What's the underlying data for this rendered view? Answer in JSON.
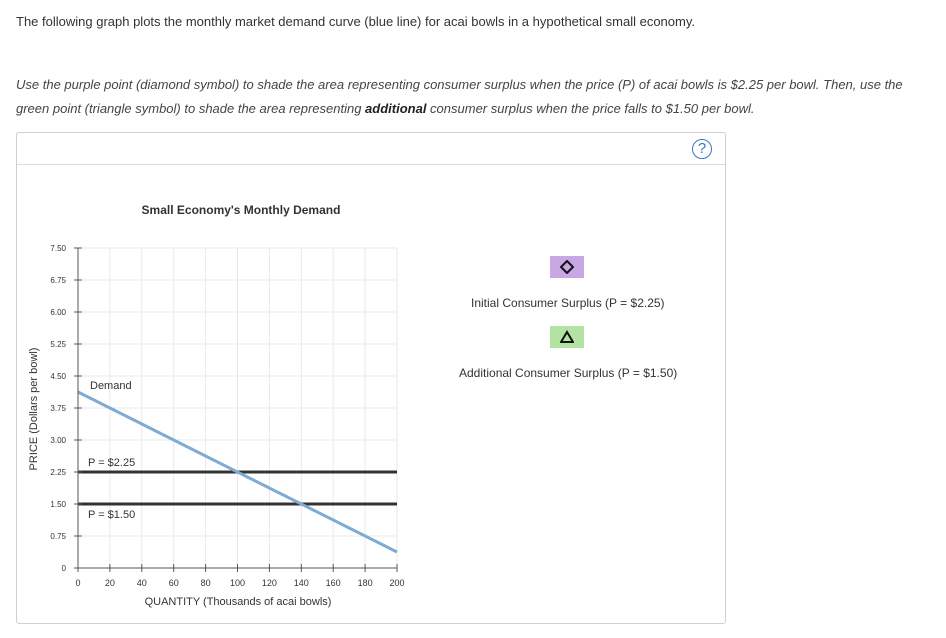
{
  "intro_text": "The following graph plots the monthly market demand curve (blue line) for acai bowls in a hypothetical small economy.",
  "instructions": {
    "part1": "Use the purple point (diamond symbol) to shade the area representing consumer surplus when the price (P) of acai bowls is $2.25 per bowl. Then, use the green point (triangle symbol) to shade the area representing ",
    "bold": "additional",
    "part2": " consumer surplus when the price falls to $1.50 per bowl."
  },
  "help_label": "?",
  "legend": {
    "initial": {
      "label": "Initial Consumer Surplus (P = $2.25)",
      "color": "#c9a6e4",
      "icon": "diamond-icon"
    },
    "additional": {
      "label": "Additional Consumer Surplus (P = $1.50)",
      "color": "#b3e3a2",
      "icon": "triangle-icon"
    }
  },
  "chart_data": {
    "type": "line",
    "title": "Small Economy's Monthly Demand",
    "xlabel": "QUANTITY (Thousands of acai bowls)",
    "ylabel": "PRICE (Dollars per bowl)",
    "xlim": [
      0,
      200
    ],
    "ylim": [
      0,
      7.5
    ],
    "x_ticks": [
      0,
      20,
      40,
      60,
      80,
      100,
      120,
      140,
      160,
      180,
      200
    ],
    "y_ticks": [
      0,
      0.75,
      1.5,
      2.25,
      3.0,
      3.75,
      4.5,
      5.25,
      6.0,
      6.75,
      7.5
    ],
    "x_tick_labels": [
      "0",
      "20",
      "40",
      "60",
      "80",
      "100",
      "120",
      "140",
      "160",
      "180",
      "200"
    ],
    "y_tick_labels": [
      "0",
      "0.75",
      "1.50",
      "2.25",
      "3.00",
      "3.75",
      "4.50",
      "5.25",
      "6.00",
      "6.75",
      "7.50"
    ],
    "grid": true,
    "series": [
      {
        "name": "Demand",
        "color": "#7faad4",
        "points": [
          [
            0,
            4.125
          ],
          [
            200,
            0.375
          ]
        ]
      }
    ],
    "price_lines": [
      {
        "label": "P = $2.25",
        "value": 2.25,
        "color": "#333333"
      },
      {
        "label": "P = $1.50",
        "value": 1.5,
        "color": "#333333"
      }
    ]
  }
}
